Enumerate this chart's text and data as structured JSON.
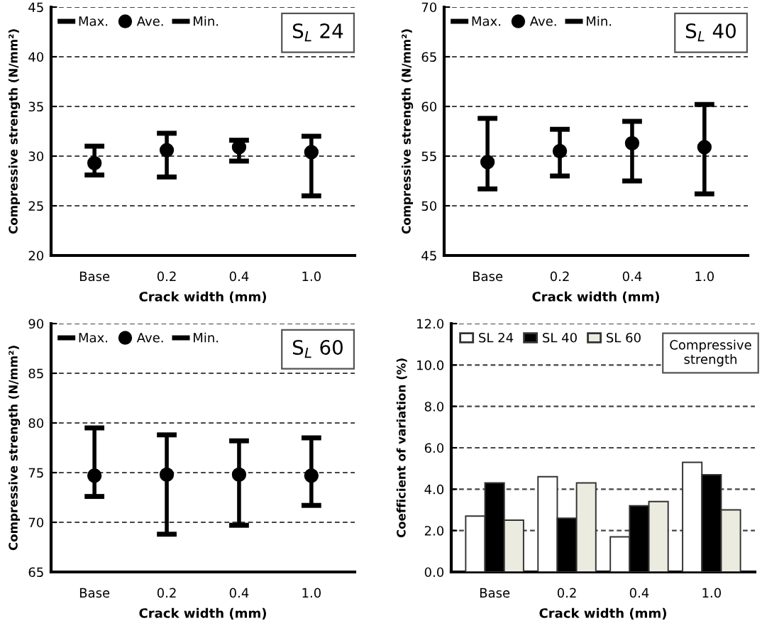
{
  "chart_data": [
    {
      "type": "scatter",
      "categories": [
        "Base",
        "0.2",
        "0.4",
        "1.0"
      ],
      "xlabel": "Crack width (mm)",
      "ylabel": "Compressive strength (N/mm²)",
      "ylim": [
        20,
        45
      ],
      "yticks": [
        20,
        25,
        30,
        35,
        40,
        45
      ],
      "grid": "y",
      "legend": "top left",
      "annotations": [
        "S$_{L}$ 24",
        "Max.",
        "Min."
      ],
      "series": [
        {
          "name": "Ave.",
          "color": "#000000",
          "marker": "circle",
          "values": [
            29.3,
            30.6,
            30.9,
            30.4
          ],
          "errors": [
            [
              28.1,
              31.0
            ],
            [
              27.9,
              32.3
            ],
            [
              29.5,
              31.6
            ],
            [
              26.0,
              32.0
            ]
          ]
        }
      ]
    },
    {
      "type": "scatter",
      "categories": [
        "Base",
        "0.2",
        "0.4",
        "1.0"
      ],
      "xlabel": "Crack width (mm)",
      "ylabel": "Compressive strength (N/mm²)",
      "ylim": [
        45,
        70
      ],
      "yticks": [
        45,
        50,
        55,
        60,
        65,
        70
      ],
      "grid": "y",
      "legend": "top left",
      "annotations": [
        "S$_{L}$ 40",
        "Max.",
        "Min."
      ],
      "series": [
        {
          "name": "Ave.",
          "color": "#000000",
          "marker": "circle",
          "values": [
            54.4,
            55.5,
            56.3,
            55.9
          ],
          "errors": [
            [
              51.7,
              58.8
            ],
            [
              53.0,
              57.7
            ],
            [
              52.5,
              58.5
            ],
            [
              51.2,
              60.2
            ]
          ]
        }
      ]
    },
    {
      "type": "scatter",
      "categories": [
        "Base",
        "0.2",
        "0.4",
        "1.0"
      ],
      "xlabel": "Crack width (mm)",
      "ylabel": "Compressive strength (N/mm²)",
      "ylim": [
        65,
        90
      ],
      "yticks": [
        65,
        70,
        75,
        80,
        85,
        90
      ],
      "grid": "y",
      "legend": "top left",
      "annotations": [
        "S$_{L}$ 60",
        "Max.",
        "Min."
      ],
      "series": [
        {
          "name": "Ave.",
          "color": "#000000",
          "marker": "circle",
          "values": [
            74.7,
            74.8,
            74.8,
            74.7
          ],
          "errors": [
            [
              72.6,
              79.5
            ],
            [
              68.8,
              78.8
            ],
            [
              69.7,
              78.2
            ],
            [
              71.7,
              78.5
            ]
          ]
        }
      ]
    },
    {
      "type": "bar",
      "categories": [
        "Base",
        "0.2",
        "0.4",
        "1.0"
      ],
      "xlabel": "Crack width (mm)",
      "ylabel": "Coefficient of variation (%)",
      "ylim": [
        0,
        12
      ],
      "yticks": [
        {
          "value": 0,
          "label": "0.0"
        },
        {
          "value": 2,
          "label": "2.0"
        },
        {
          "value": 4,
          "label": "4.0"
        },
        {
          "value": 6,
          "label": "6.0"
        },
        {
          "value": 8,
          "label": "8.0"
        },
        {
          "value": 10,
          "label": "10.0"
        },
        {
          "value": 12,
          "label": "12.0"
        }
      ],
      "grid": "y",
      "legend": "top left",
      "annotations": [
        "Compressive\nstrength"
      ],
      "series": [
        {
          "name": "SL 24",
          "color": "#ffffff",
          "values": [
            2.7,
            4.6,
            1.7,
            5.3
          ]
        },
        {
          "name": "SL 40",
          "color": "#000000",
          "values": [
            4.3,
            2.6,
            3.2,
            4.7
          ]
        },
        {
          "name": "SL 60",
          "color": "#ebebe0",
          "values": [
            2.5,
            4.3,
            3.4,
            3.0
          ]
        }
      ]
    }
  ]
}
